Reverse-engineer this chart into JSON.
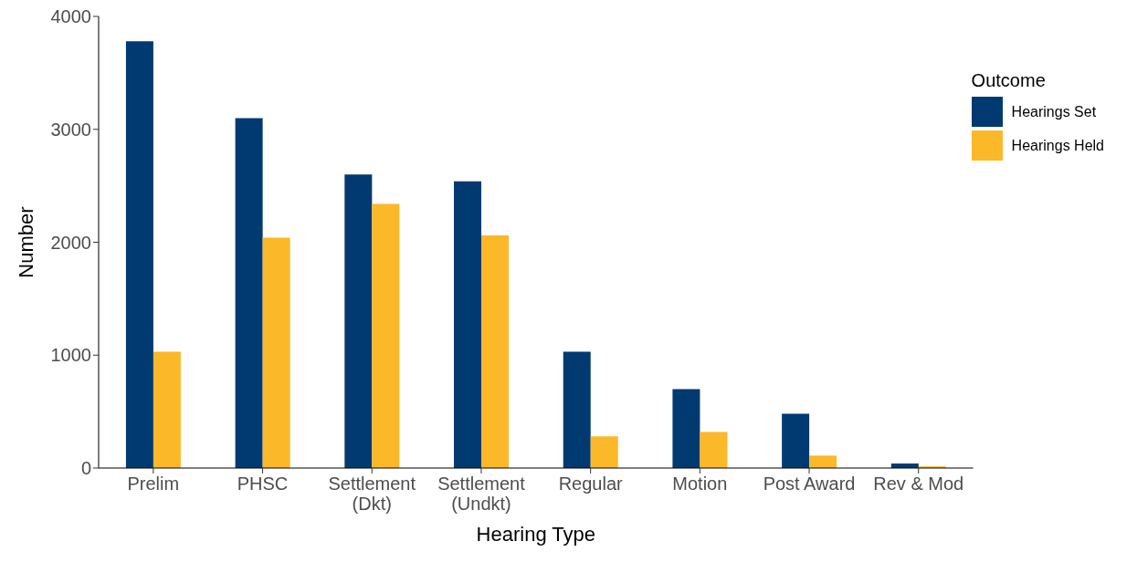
{
  "chart_data": {
    "type": "bar",
    "xlabel": "Hearing Type",
    "ylabel": "Number",
    "legend_title": "Outcome",
    "categories": [
      "Prelim",
      "PHSC",
      "Settlement\n(Dkt)",
      "Settlement\n(Undkt)",
      "Regular",
      "Motion",
      "Post Award",
      "Rev & Mod"
    ],
    "series": [
      {
        "name": "Hearings Set",
        "color": "#003a70",
        "values": [
          3780,
          3100,
          2600,
          2540,
          1030,
          700,
          480,
          40
        ]
      },
      {
        "name": "Hearings Held",
        "color": "#fbb829",
        "values": [
          1030,
          2040,
          2340,
          2060,
          280,
          320,
          110,
          15
        ]
      }
    ],
    "ylim": [
      0,
      4000
    ],
    "yticks": [
      0,
      1000,
      2000,
      3000,
      4000
    ],
    "grid": false,
    "legend": "top right"
  }
}
